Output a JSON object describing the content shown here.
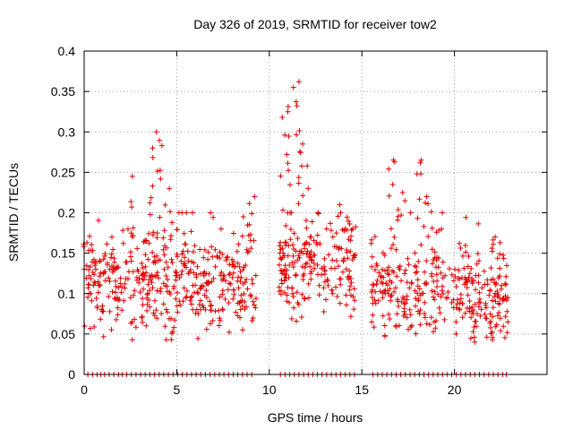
{
  "chart_data": {
    "type": "scatter",
    "title": "Day 326 of 2019, SRMTID for receiver tow2",
    "xlabel": "GPS time / hours",
    "ylabel": "SRMTID / TECUs",
    "xlim": [
      0,
      25
    ],
    "ylim": [
      0,
      0.4
    ],
    "xticks": [
      0,
      5,
      10,
      15,
      20
    ],
    "yticks": [
      0,
      0.05,
      0.1,
      0.15,
      0.2,
      0.25,
      0.3,
      0.35,
      0.4
    ],
    "ytick_labels": [
      "0",
      "0.05",
      "0.1",
      "0.15",
      "0.2",
      "0.25",
      "0.3",
      "0.35",
      "0.4"
    ],
    "grid": true,
    "marker": "+",
    "color": "#e00000",
    "series": [
      {
        "name": "SRMTID",
        "segments": [
          {
            "start": 0.0,
            "end": 9.3,
            "base": 0.11
          },
          {
            "start": 10.5,
            "end": 14.7,
            "base": 0.13
          },
          {
            "start": 15.5,
            "end": 22.9,
            "base": 0.1
          }
        ],
        "peaks": [
          {
            "x": 0.15,
            "y": 0.163
          },
          {
            "x": 1.5,
            "y": 0.17
          },
          {
            "x": 2.6,
            "y": 0.245
          },
          {
            "x": 3.7,
            "y": 0.28
          },
          {
            "x": 3.9,
            "y": 0.3
          },
          {
            "x": 4.2,
            "y": 0.283
          },
          {
            "x": 4.6,
            "y": 0.23
          },
          {
            "x": 7.4,
            "y": 0.18
          },
          {
            "x": 8.6,
            "y": 0.195
          },
          {
            "x": 9.2,
            "y": 0.22
          },
          {
            "x": 10.7,
            "y": 0.318
          },
          {
            "x": 11.0,
            "y": 0.325
          },
          {
            "x": 11.3,
            "y": 0.355
          },
          {
            "x": 11.6,
            "y": 0.362
          },
          {
            "x": 11.8,
            "y": 0.285
          },
          {
            "x": 12.1,
            "y": 0.23
          },
          {
            "x": 13.8,
            "y": 0.21
          },
          {
            "x": 14.5,
            "y": 0.18
          },
          {
            "x": 16.7,
            "y": 0.265
          },
          {
            "x": 17.2,
            "y": 0.225
          },
          {
            "x": 18.2,
            "y": 0.265
          },
          {
            "x": 18.5,
            "y": 0.22
          },
          {
            "x": 19.3,
            "y": 0.18
          },
          {
            "x": 22.2,
            "y": 0.17
          },
          {
            "x": 21.1,
            "y": 0.04
          }
        ],
        "zero_points": [
          0.2,
          0.45,
          0.7,
          0.9,
          1.1,
          1.35,
          1.6,
          1.85,
          2.05,
          2.3,
          2.55,
          2.8,
          3.05,
          3.3,
          3.55,
          3.8,
          4.05,
          4.3,
          4.55,
          4.8,
          5.05,
          5.3,
          5.55,
          5.8,
          6.05,
          6.3,
          6.55,
          6.8,
          7.05,
          7.3,
          7.55,
          7.8,
          8.05,
          8.3,
          8.55,
          8.8,
          9.05,
          10.6,
          10.85,
          11.1,
          11.35,
          11.6,
          11.85,
          12.1,
          12.35,
          12.6,
          12.85,
          13.1,
          13.35,
          13.6,
          13.85,
          14.1,
          14.35,
          14.6,
          15.6,
          15.85,
          16.1,
          16.35,
          16.6,
          16.85,
          17.1,
          17.35,
          17.6,
          17.85,
          18.1,
          18.35,
          18.6,
          18.85,
          19.1,
          19.35,
          19.6,
          19.85,
          20.1,
          20.35,
          20.6,
          20.85,
          21.1,
          21.35,
          21.6,
          21.85,
          22.1,
          22.35,
          22.6,
          22.8
        ]
      }
    ]
  }
}
